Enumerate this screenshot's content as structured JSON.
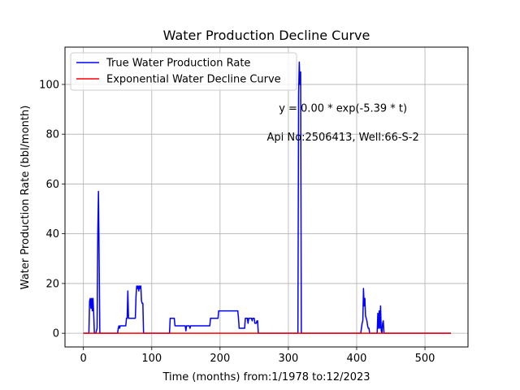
{
  "chart_data": {
    "type": "line",
    "title": "Water Production Decline Curve",
    "xlabel": "Time (months) from:1/1978 to:12/2023",
    "ylabel": "Water Production Rate (bbl/month)",
    "xlim": [
      -27,
      563
    ],
    "ylim": [
      -5.5,
      115
    ],
    "xticks": [
      0,
      100,
      200,
      300,
      400,
      500
    ],
    "yticks": [
      0,
      20,
      40,
      60,
      80,
      100
    ],
    "grid": true,
    "legend_position": "top-left",
    "annotations": [
      {
        "text": "y = 0.00 * exp(-5.39 * t)",
        "x": 380,
        "y": 89
      },
      {
        "text": "Api No:2506413, Well:66-S-2",
        "x": 380,
        "y": 77.5
      }
    ],
    "series": [
      {
        "name": "True Water Production Rate",
        "color": "#0000ff",
        "points": [
          [
            0,
            0
          ],
          [
            8,
            0
          ],
          [
            9,
            13
          ],
          [
            10,
            14
          ],
          [
            11,
            10
          ],
          [
            12,
            14
          ],
          [
            13,
            9
          ],
          [
            14,
            14
          ],
          [
            15,
            8
          ],
          [
            16,
            0
          ],
          [
            18,
            0
          ],
          [
            20,
            2
          ],
          [
            21,
            40
          ],
          [
            22,
            57
          ],
          [
            23,
            30
          ],
          [
            24,
            0
          ],
          [
            50,
            0
          ],
          [
            51,
            2
          ],
          [
            52,
            3
          ],
          [
            53,
            2
          ],
          [
            54,
            3
          ],
          [
            62,
            3
          ],
          [
            63,
            6
          ],
          [
            64,
            6
          ],
          [
            65,
            17
          ],
          [
            66,
            6
          ],
          [
            76,
            6
          ],
          [
            77,
            15
          ],
          [
            78,
            19
          ],
          [
            79,
            18
          ],
          [
            80,
            19
          ],
          [
            81,
            17
          ],
          [
            82,
            19
          ],
          [
            83,
            18
          ],
          [
            84,
            19
          ],
          [
            85,
            13
          ],
          [
            86,
            12
          ],
          [
            87,
            12
          ],
          [
            88,
            0
          ],
          [
            126,
            0
          ],
          [
            127,
            6
          ],
          [
            133,
            6
          ],
          [
            134,
            3
          ],
          [
            149,
            3
          ],
          [
            150,
            1
          ],
          [
            151,
            3
          ],
          [
            155,
            3
          ],
          [
            156,
            2
          ],
          [
            157,
            3
          ],
          [
            185,
            3
          ],
          [
            186,
            6
          ],
          [
            197,
            6
          ],
          [
            198,
            9
          ],
          [
            226,
            9
          ],
          [
            227,
            6
          ],
          [
            228,
            2
          ],
          [
            236,
            2
          ],
          [
            237,
            6
          ],
          [
            240,
            6
          ],
          [
            241,
            4
          ],
          [
            242,
            6
          ],
          [
            246,
            6
          ],
          [
            247,
            5
          ],
          [
            248,
            6
          ],
          [
            250,
            6
          ],
          [
            251,
            4
          ],
          [
            253,
            4
          ],
          [
            254,
            5
          ],
          [
            255,
            5
          ],
          [
            256,
            0
          ],
          [
            314,
            0
          ],
          [
            315,
            96
          ],
          [
            316,
            109
          ],
          [
            317,
            100
          ],
          [
            318,
            105
          ],
          [
            319,
            0
          ],
          [
            406,
            0
          ],
          [
            408,
            4
          ],
          [
            409,
            5
          ],
          [
            410,
            18
          ],
          [
            411,
            11
          ],
          [
            412,
            14
          ],
          [
            413,
            7
          ],
          [
            414,
            6
          ],
          [
            415,
            5
          ],
          [
            416,
            3
          ],
          [
            417,
            2
          ],
          [
            418,
            2
          ],
          [
            419,
            0
          ],
          [
            430,
            0
          ],
          [
            431,
            8
          ],
          [
            432,
            2
          ],
          [
            433,
            9
          ],
          [
            434,
            2
          ],
          [
            435,
            11
          ],
          [
            436,
            1
          ],
          [
            437,
            0
          ],
          [
            438,
            4
          ],
          [
            439,
            5
          ],
          [
            440,
            0
          ],
          [
            538,
            0
          ]
        ]
      },
      {
        "name": "Exponential Water Decline Curve",
        "color": "#ff0000",
        "points": [
          [
            0,
            0
          ],
          [
            538,
            0
          ]
        ]
      }
    ]
  }
}
